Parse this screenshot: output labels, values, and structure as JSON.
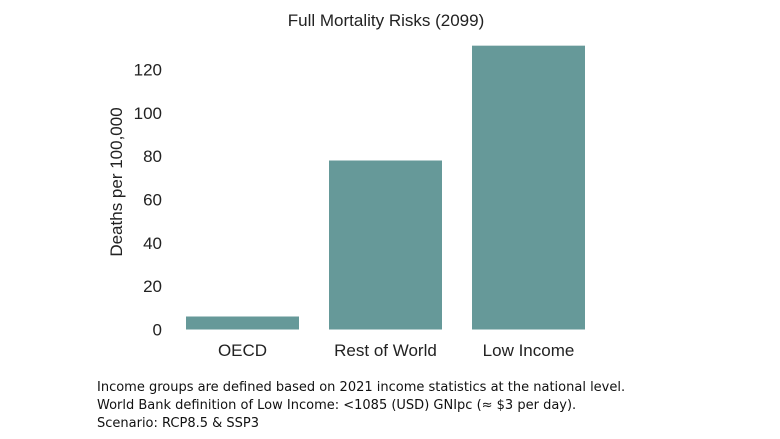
{
  "chart_data": {
    "type": "bar",
    "title": "Full Mortality Risks (2099)",
    "xlabel": "",
    "ylabel": "Deaths per 100,000",
    "categories": [
      "OECD",
      "Rest of World",
      "Low Income"
    ],
    "values": [
      6,
      78,
      131
    ],
    "yticks": [
      0,
      20,
      40,
      60,
      80,
      100,
      120
    ],
    "ylim": [
      0,
      131
    ],
    "grid": false,
    "bar_color": "#669999"
  },
  "notes": [
    "Income groups are defined based on 2021 income statistics at the national level.",
    "World Bank definition of Low Income: <1085 (USD) GNIpc (≈ $3 per day).",
    "Scenario: RCP8.5 & SSP3"
  ]
}
